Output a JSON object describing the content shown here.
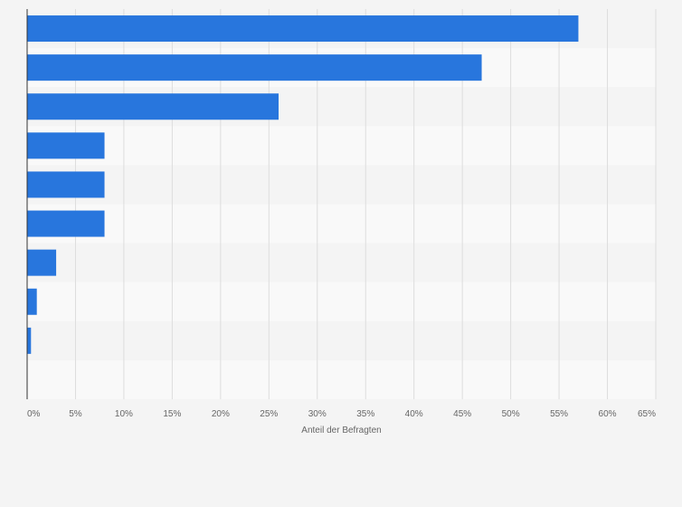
{
  "chart_data": {
    "type": "bar",
    "orientation": "horizontal",
    "categories": [
      "",
      "",
      "",
      "",
      "",
      "",
      "",
      "",
      "",
      ""
    ],
    "values": [
      57,
      47,
      26,
      8,
      8,
      8,
      3,
      1,
      0.4,
      0
    ],
    "xlabel": "Anteil der Befragten",
    "ylabel": "",
    "xlim": [
      0,
      65
    ],
    "x_ticks": [
      0,
      5,
      10,
      15,
      20,
      25,
      30,
      35,
      40,
      45,
      50,
      55,
      60,
      65
    ],
    "x_tick_labels": [
      "0%",
      "5%",
      "10%",
      "15%",
      "20%",
      "25%",
      "30%",
      "35%",
      "40%",
      "45%",
      "50%",
      "55%",
      "60%",
      "65%"
    ],
    "grid": true,
    "bar_color": "#2876dd",
    "band_colors": [
      "#f4f4f4",
      "#f9f9f9"
    ],
    "gridline_color": "#dddddd",
    "axis_color": "#333333"
  }
}
